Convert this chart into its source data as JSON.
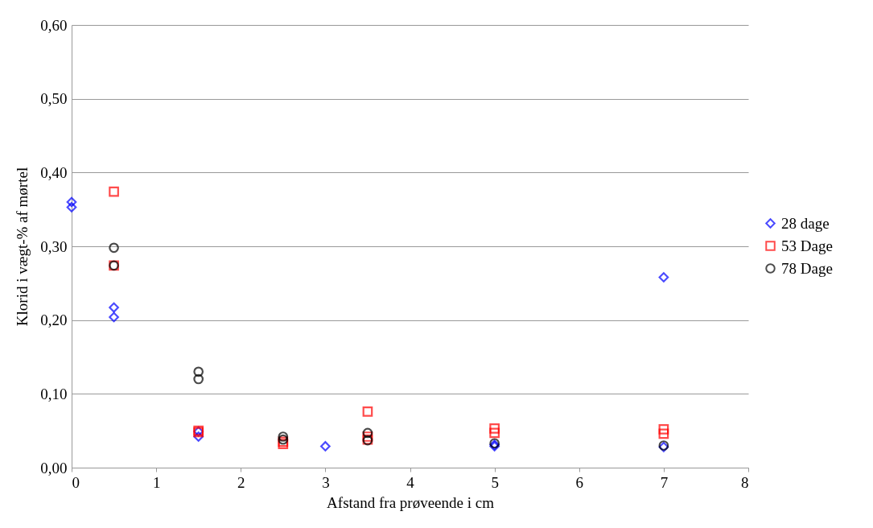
{
  "chart_data": {
    "type": "scatter",
    "xlabel": "Afstand fra prøveende i cm",
    "ylabel": "Klorid i vægt-% af  mørtel",
    "xlim": [
      0,
      8
    ],
    "xticks": [
      0,
      1,
      2,
      3,
      4,
      5,
      6,
      7,
      8
    ],
    "ylim": [
      0,
      0.6
    ],
    "yticks": [
      {
        "value": 0,
        "label": "0,00"
      },
      {
        "value": 0.1,
        "label": "0,10"
      },
      {
        "value": 0.2,
        "label": "0,20"
      },
      {
        "value": 0.3,
        "label": "0,30"
      },
      {
        "value": 0.4,
        "label": "0,40"
      },
      {
        "value": 0.5,
        "label": "0,50"
      },
      {
        "value": 0.6,
        "label": "0,60"
      }
    ],
    "grid": "y",
    "legend": "right",
    "series": [
      {
        "name": "28 dage",
        "color": "#0000ff",
        "marker": "diamond",
        "x": [
          0,
          0,
          0.5,
          0.5,
          1.5,
          1.5,
          3,
          5,
          5,
          7,
          7
        ],
        "values": [
          0.36,
          0.353,
          0.217,
          0.204,
          0.049,
          0.042,
          0.029,
          0.029,
          0.031,
          0.258,
          0.028
        ]
      },
      {
        "name": "53 Dage",
        "color": "#ff0000",
        "marker": "square",
        "x": [
          0.5,
          0.5,
          1.5,
          1.5,
          2.5,
          2.5,
          3.5,
          3.5,
          3.5,
          5,
          5,
          7,
          7
        ],
        "values": [
          0.374,
          0.274,
          0.05,
          0.048,
          0.032,
          0.035,
          0.076,
          0.042,
          0.038,
          0.053,
          0.047,
          0.052,
          0.046
        ]
      },
      {
        "name": "78 Dage",
        "color": "#000000",
        "marker": "circle",
        "x": [
          0.5,
          0.5,
          1.5,
          1.5,
          2.5,
          2.5,
          3.5,
          3.5,
          5,
          7
        ],
        "values": [
          0.298,
          0.274,
          0.13,
          0.12,
          0.042,
          0.038,
          0.047,
          0.037,
          0.033,
          0.03
        ]
      }
    ]
  }
}
